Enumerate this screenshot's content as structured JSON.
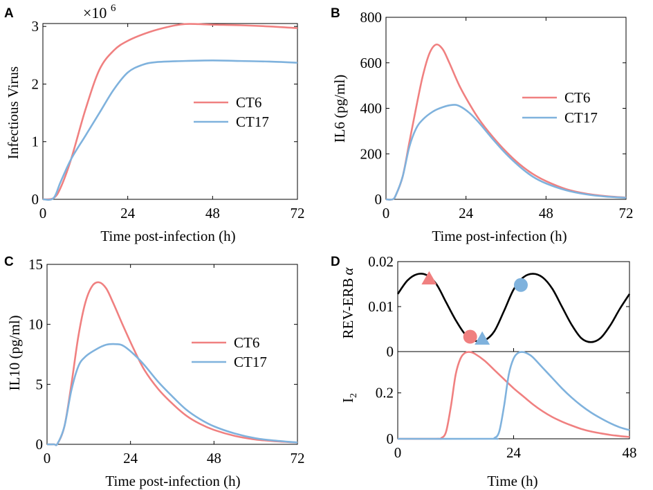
{
  "chart_data": [
    {
      "panel": "A",
      "type": "line",
      "xlabel": "Time post-infection (h)",
      "ylabel": "Infectious Virus",
      "y_multiplier": "×10",
      "y_exponent": "6",
      "xlim": [
        0,
        72
      ],
      "ylim": [
        0,
        3.05
      ],
      "xticks": [
        0,
        24,
        48,
        72
      ],
      "yticks": [
        0,
        1,
        2,
        3
      ],
      "legend_position": "center-right",
      "series": [
        {
          "name": "CT6",
          "color": "#f08080",
          "x": [
            0,
            3,
            5,
            8,
            12,
            16,
            20,
            24,
            30,
            36,
            40,
            44,
            48,
            56,
            64,
            72
          ],
          "y": [
            0,
            0.02,
            0.2,
            0.7,
            1.55,
            2.25,
            2.58,
            2.75,
            2.9,
            3.0,
            3.04,
            3.04,
            3.03,
            3.02,
            3.0,
            2.97
          ]
        },
        {
          "name": "CT17",
          "color": "#7fb2dd",
          "x": [
            0,
            3,
            5,
            8,
            12,
            16,
            20,
            24,
            28,
            32,
            40,
            48,
            56,
            64,
            72
          ],
          "y": [
            0,
            0.02,
            0.3,
            0.7,
            1.1,
            1.5,
            1.9,
            2.2,
            2.33,
            2.38,
            2.4,
            2.41,
            2.4,
            2.39,
            2.37
          ]
        }
      ]
    },
    {
      "panel": "B",
      "type": "line",
      "xlabel": "Time post-infection (h)",
      "ylabel": "IL6 (pg/ml)",
      "xlim": [
        0,
        72
      ],
      "ylim": [
        0,
        800
      ],
      "xticks": [
        0,
        24,
        48,
        72
      ],
      "yticks": [
        0,
        200,
        400,
        600,
        800
      ],
      "legend_position": "center-right",
      "series": [
        {
          "name": "CT6",
          "color": "#f08080",
          "x": [
            0,
            2,
            3,
            5,
            7,
            9,
            11,
            13,
            15,
            17,
            19,
            22,
            25,
            28,
            32,
            36,
            40,
            44,
            48,
            54,
            60,
            66,
            72
          ],
          "y": [
            0,
            0,
            20,
            100,
            250,
            400,
            540,
            640,
            680,
            660,
            600,
            500,
            420,
            350,
            275,
            210,
            155,
            112,
            80,
            45,
            25,
            14,
            8
          ]
        },
        {
          "name": "CT17",
          "color": "#7fb2dd",
          "x": [
            0,
            2,
            3,
            5,
            7,
            9,
            11,
            14,
            17,
            20,
            22,
            25,
            28,
            32,
            36,
            40,
            44,
            48,
            54,
            60,
            66,
            72
          ],
          "y": [
            0,
            0,
            20,
            100,
            230,
            310,
            350,
            385,
            405,
            415,
            410,
            380,
            335,
            265,
            200,
            145,
            100,
            70,
            40,
            22,
            12,
            7
          ]
        }
      ]
    },
    {
      "panel": "C",
      "type": "line",
      "xlabel": "Time post-infection (h)",
      "ylabel": "IL10 (pg/ml)",
      "xlim": [
        0,
        72
      ],
      "ylim": [
        0,
        15
      ],
      "xticks": [
        0,
        24,
        48,
        72
      ],
      "yticks": [
        0,
        5,
        10,
        15
      ],
      "legend_position": "center-right",
      "series": [
        {
          "name": "CT6",
          "color": "#f08080",
          "x": [
            0,
            2,
            3,
            5,
            7,
            9,
            11,
            13,
            15,
            17,
            19,
            22,
            25,
            28,
            32,
            36,
            40,
            44,
            48,
            54,
            60,
            66,
            72
          ],
          "y": [
            0,
            0,
            0.05,
            1.5,
            5.0,
            9.0,
            11.8,
            13.2,
            13.5,
            13.0,
            11.8,
            9.8,
            7.9,
            6.2,
            4.6,
            3.4,
            2.4,
            1.7,
            1.2,
            0.7,
            0.4,
            0.25,
            0.15
          ]
        },
        {
          "name": "CT17",
          "color": "#7fb2dd",
          "x": [
            0,
            2,
            3,
            5,
            7,
            9,
            11,
            14,
            17,
            20,
            22,
            25,
            28,
            32,
            36,
            40,
            44,
            48,
            54,
            60,
            66,
            72
          ],
          "y": [
            0,
            0,
            0.05,
            1.5,
            4.5,
            6.5,
            7.3,
            7.9,
            8.3,
            8.35,
            8.2,
            7.5,
            6.6,
            5.2,
            4.0,
            2.9,
            2.1,
            1.5,
            0.9,
            0.5,
            0.3,
            0.15
          ]
        }
      ]
    },
    {
      "panel": "D",
      "type": "line",
      "subplots": [
        {
          "ylabel": "REV-ERB",
          "ylabel_symbol": "α",
          "xlim": [
            0,
            48
          ],
          "ylim": [
            0,
            0.02
          ],
          "yticks": [
            0,
            0.01,
            0.02
          ],
          "ytick_labels": [
            "0",
            "0.01",
            "0.02"
          ],
          "series": [
            {
              "name": "",
              "color": "#000000",
              "x": [
                0,
                2,
                4,
                6,
                8,
                10,
                12,
                14,
                16,
                18,
                20,
                22,
                24,
                26,
                28,
                30,
                32,
                34,
                36,
                38,
                40,
                42,
                44,
                46,
                48
              ],
              "y": [
                0.0128,
                0.0158,
                0.0172,
                0.017,
                0.015,
                0.011,
                0.007,
                0.0038,
                0.0024,
                0.0025,
                0.0045,
                0.009,
                0.0138,
                0.0165,
                0.0173,
                0.0165,
                0.014,
                0.01,
                0.006,
                0.003,
                0.0021,
                0.003,
                0.0058,
                0.0095,
                0.0128
              ]
            }
          ],
          "markers": [
            {
              "shape": "triangle",
              "color": "#f08080",
              "x": 6.5,
              "y": 0.0162
            },
            {
              "shape": "circle",
              "color": "#f08080",
              "x": 15,
              "y": 0.0033
            },
            {
              "shape": "triangle",
              "color": "#7fb2dd",
              "x": 17.5,
              "y": 0.0028
            },
            {
              "shape": "circle",
              "color": "#7fb2dd",
              "x": 25.5,
              "y": 0.0148
            }
          ]
        },
        {
          "ylabel": "I",
          "ylabel_sub": "2",
          "xlabel": "Time (h)",
          "xlim": [
            0,
            48
          ],
          "ylim": [
            0,
            0.38
          ],
          "xticks": [
            0,
            24,
            48
          ],
          "yticks": [
            0,
            0.2
          ],
          "ytick_labels": [
            "0",
            "0.2"
          ],
          "series": [
            {
              "name": "CT6",
              "color": "#f08080",
              "x": [
                0,
                8,
                9,
                10,
                11,
                12,
                13,
                14,
                15,
                16,
                18,
                20,
                22,
                24,
                26,
                28,
                30,
                32,
                34,
                36,
                38,
                40,
                42,
                44,
                46,
                48
              ],
              "y": [
                0,
                0,
                0.003,
                0.03,
                0.14,
                0.28,
                0.35,
                0.375,
                0.378,
                0.37,
                0.34,
                0.3,
                0.26,
                0.22,
                0.185,
                0.15,
                0.12,
                0.095,
                0.075,
                0.058,
                0.043,
                0.032,
                0.024,
                0.017,
                0.012,
                0.008
              ]
            },
            {
              "name": "CT17",
              "color": "#7fb2dd",
              "x": [
                0,
                19,
                20,
                21,
                22,
                23,
                24,
                25,
                26,
                27,
                28,
                30,
                32,
                34,
                36,
                38,
                40,
                42,
                44,
                46,
                48
              ],
              "y": [
                0,
                0,
                0.003,
                0.03,
                0.14,
                0.28,
                0.35,
                0.375,
                0.378,
                0.37,
                0.355,
                0.31,
                0.265,
                0.22,
                0.18,
                0.145,
                0.115,
                0.09,
                0.068,
                0.05,
                0.038
              ]
            }
          ]
        }
      ]
    }
  ]
}
